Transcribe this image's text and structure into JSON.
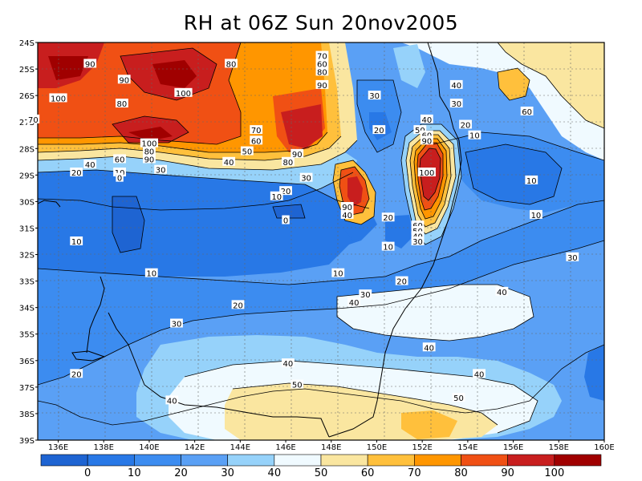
{
  "title": "RH at 06Z Sun 20nov2005",
  "lat_labels": [
    "24S",
    "25S",
    "26S",
    "27S",
    "28S",
    "29S",
    "30S",
    "31S",
    "32S",
    "33S",
    "34S",
    "35S",
    "36S",
    "37S",
    "38S",
    "39S"
  ],
  "lon_labels": [
    "136E",
    "138E",
    "140E",
    "142E",
    "144E",
    "146E",
    "148E",
    "150E",
    "152E",
    "154E",
    "156E",
    "158E",
    "160E"
  ],
  "contour_labels": [
    {
      "text": "90",
      "lon": 137.4,
      "lat": -24.8
    },
    {
      "text": "90",
      "lon": 138.9,
      "lat": -25.4
    },
    {
      "text": "100",
      "lon": 136.0,
      "lat": -26.1
    },
    {
      "text": "80",
      "lon": 138.8,
      "lat": -26.3
    },
    {
      "text": "100",
      "lon": 141.5,
      "lat": -25.9
    },
    {
      "text": "80",
      "lon": 143.6,
      "lat": -24.8
    },
    {
      "text": "70",
      "lon": 147.6,
      "lat": -24.5
    },
    {
      "text": "60",
      "lon": 147.6,
      "lat": -24.8
    },
    {
      "text": "80",
      "lon": 147.6,
      "lat": -25.1
    },
    {
      "text": "90",
      "lon": 147.6,
      "lat": -25.6
    },
    {
      "text": "70",
      "lon": 134.9,
      "lat": -26.9
    },
    {
      "text": "100",
      "lon": 140.0,
      "lat": -27.8
    },
    {
      "text": "80",
      "lon": 140.0,
      "lat": -28.1
    },
    {
      "text": "90",
      "lon": 140.0,
      "lat": -28.4
    },
    {
      "text": "70",
      "lon": 144.7,
      "lat": -27.3
    },
    {
      "text": "60",
      "lon": 144.7,
      "lat": -27.7
    },
    {
      "text": "50",
      "lon": 144.3,
      "lat": -28.1
    },
    {
      "text": "40",
      "lon": 143.5,
      "lat": -28.5
    },
    {
      "text": "90",
      "lon": 146.5,
      "lat": -28.2
    },
    {
      "text": "80",
      "lon": 146.1,
      "lat": -28.5
    },
    {
      "text": "60",
      "lon": 138.7,
      "lat": -28.4
    },
    {
      "text": "40",
      "lon": 137.4,
      "lat": -28.6
    },
    {
      "text": "20",
      "lon": 136.8,
      "lat": -28.9
    },
    {
      "text": "10",
      "lon": 138.7,
      "lat": -28.9
    },
    {
      "text": "0",
      "lon": 138.7,
      "lat": -29.1
    },
    {
      "text": "30",
      "lon": 140.5,
      "lat": -28.8
    },
    {
      "text": "30",
      "lon": 146.9,
      "lat": -29.1
    },
    {
      "text": "20",
      "lon": 146.0,
      "lat": -29.6
    },
    {
      "text": "10",
      "lon": 145.6,
      "lat": -29.8
    },
    {
      "text": "0",
      "lon": 146.0,
      "lat": -30.7
    },
    {
      "text": "90",
      "lon": 148.7,
      "lat": -30.2
    },
    {
      "text": "40",
      "lon": 148.7,
      "lat": -30.5
    },
    {
      "text": "20",
      "lon": 150.5,
      "lat": -30.6
    },
    {
      "text": "10",
      "lon": 150.5,
      "lat": -31.7
    },
    {
      "text": "30",
      "lon": 149.9,
      "lat": -26.0
    },
    {
      "text": "20",
      "lon": 150.1,
      "lat": -27.3
    },
    {
      "text": "40",
      "lon": 152.2,
      "lat": -26.9
    },
    {
      "text": "50",
      "lon": 151.9,
      "lat": -27.3
    },
    {
      "text": "60",
      "lon": 152.2,
      "lat": -27.5
    },
    {
      "text": "90",
      "lon": 152.2,
      "lat": -27.7
    },
    {
      "text": "100",
      "lon": 152.2,
      "lat": -28.9
    },
    {
      "text": "60",
      "lon": 151.8,
      "lat": -30.9
    },
    {
      "text": "50",
      "lon": 151.8,
      "lat": -31.1
    },
    {
      "text": "40",
      "lon": 151.8,
      "lat": -31.3
    },
    {
      "text": "30",
      "lon": 151.8,
      "lat": -31.5
    },
    {
      "text": "40",
      "lon": 153.5,
      "lat": -25.6
    },
    {
      "text": "30",
      "lon": 153.5,
      "lat": -26.3
    },
    {
      "text": "20",
      "lon": 153.9,
      "lat": -27.1
    },
    {
      "text": "10",
      "lon": 154.3,
      "lat": -27.5
    },
    {
      "text": "60",
      "lon": 156.6,
      "lat": -26.6
    },
    {
      "text": "10",
      "lon": 156.8,
      "lat": -29.2
    },
    {
      "text": "10",
      "lon": 157.0,
      "lat": -30.5
    },
    {
      "text": "10",
      "lon": 136.8,
      "lat": -31.5
    },
    {
      "text": "10",
      "lon": 140.1,
      "lat": -32.7
    },
    {
      "text": "10",
      "lon": 148.3,
      "lat": -32.7
    },
    {
      "text": "20",
      "lon": 151.1,
      "lat": -33.0
    },
    {
      "text": "30",
      "lon": 158.6,
      "lat": -32.1
    },
    {
      "text": "20",
      "lon": 143.9,
      "lat": -33.9
    },
    {
      "text": "30",
      "lon": 149.5,
      "lat": -33.5
    },
    {
      "text": "40",
      "lon": 149.0,
      "lat": -33.8
    },
    {
      "text": "40",
      "lon": 155.5,
      "lat": -33.4
    },
    {
      "text": "30",
      "lon": 141.2,
      "lat": -34.6
    },
    {
      "text": "40",
      "lon": 152.3,
      "lat": -35.5
    },
    {
      "text": "40",
      "lon": 146.1,
      "lat": -36.1
    },
    {
      "text": "50",
      "lon": 146.5,
      "lat": -36.9
    },
    {
      "text": "40",
      "lon": 154.5,
      "lat": -36.5
    },
    {
      "text": "20",
      "lon": 136.8,
      "lat": -36.5
    },
    {
      "text": "40",
      "lon": 141.0,
      "lat": -37.5
    },
    {
      "text": "50",
      "lon": 153.6,
      "lat": -37.4
    }
  ],
  "colorbar": {
    "labels": [
      "0",
      "10",
      "20",
      "30",
      "40",
      "50",
      "60",
      "70",
      "80",
      "90",
      "100"
    ],
    "colors": [
      "#1e64d2",
      "#2878e6",
      "#3c8cf0",
      "#5aa0f5",
      "#96d2fa",
      "#f0faff",
      "#fae6a0",
      "#ffc03c",
      "#ff9600",
      "#f05014",
      "#c81e1e",
      "#a00000"
    ]
  }
}
